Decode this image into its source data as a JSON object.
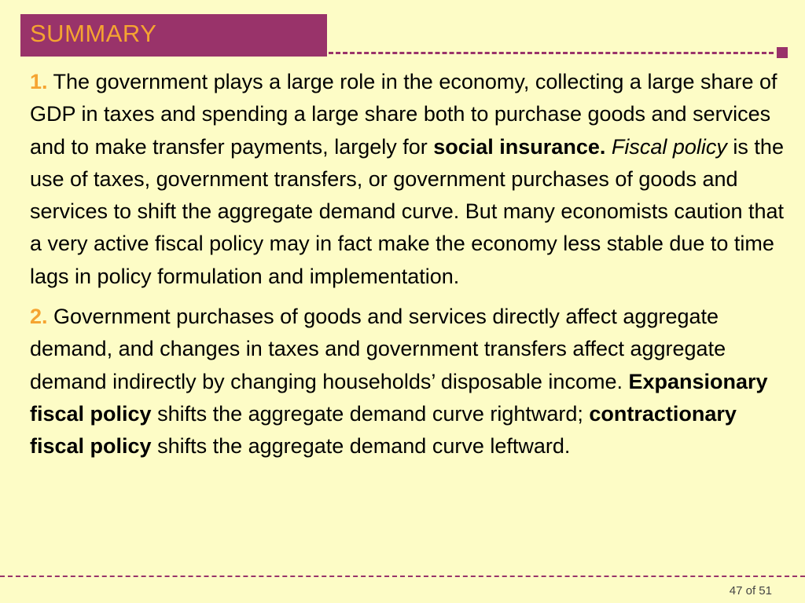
{
  "title": "SUMMARY",
  "paragraphs": [
    {
      "number": "1.",
      "segments": [
        {
          "text": " The government plays a large role in the economy, collecting a large share of GDP in taxes and spending a large share both to purchase goods and services and to make transfer payments, largely for ",
          "style": "normal"
        },
        {
          "text": "social insurance.",
          "style": "bold"
        },
        {
          "text": " ",
          "style": "normal"
        },
        {
          "text": "Fiscal policy",
          "style": "italic"
        },
        {
          "text": " is the use of taxes, government transfers, or government purchases of goods and services to shift the aggregate demand curve. But many economists caution that a very active fiscal policy may in fact make the economy less stable due to time lags in policy formulation and implementation.",
          "style": "normal"
        }
      ]
    },
    {
      "number": "2.",
      "segments": [
        {
          "text": " Government purchases of goods and services directly affect aggregate demand, and changes in taxes and government transfers affect aggregate demand indirectly by changing households’ disposable income. ",
          "style": "normal"
        },
        {
          "text": "Expansionary fiscal policy",
          "style": "bold"
        },
        {
          "text": " shifts the aggregate demand curve rightward; ",
          "style": "normal"
        },
        {
          "text": "contractionary fiscal policy",
          "style": "bold"
        },
        {
          "text": " shifts the aggregate demand curve leftward.",
          "style": "normal"
        }
      ]
    }
  ],
  "footer": {
    "page_label": "47 of 51"
  },
  "colors": {
    "background": "#fdfcc6",
    "title_bar": "#99336a",
    "accent": "#f5a431"
  }
}
